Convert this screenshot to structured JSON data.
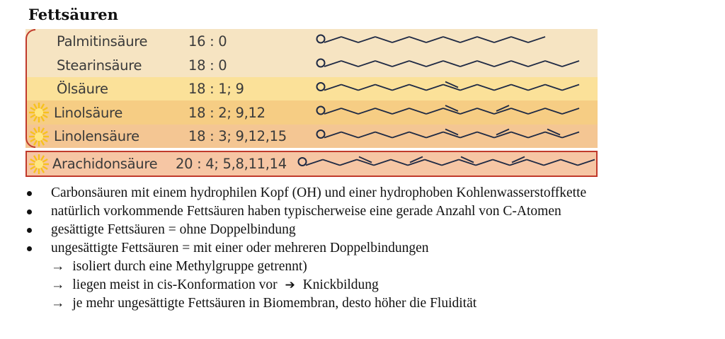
{
  "title": "Fettsäuren",
  "fatty_acids": [
    {
      "name": "Palmitinsäure",
      "notation": "16 : 0",
      "bg": "#f6e4c2",
      "sun": false
    },
    {
      "name": "Stearinsäure",
      "notation": "18 : 0",
      "bg": "#f6e4c2",
      "sun": false
    },
    {
      "name": "Ölsäure",
      "notation": "18 : 1;  9",
      "bg": "#fbe199",
      "sun": false
    },
    {
      "name": "Linolsäure",
      "notation": "18 : 2;  9,12",
      "bg": "#f6cd84",
      "sun": true
    },
    {
      "name": "Linolensäure",
      "notation": "18 : 3;  9,12,15",
      "bg": "#f4c693",
      "sun": true
    },
    {
      "name": "Arachidonsäure",
      "notation": "20 : 4;  5,8,11,14",
      "bg": "#f6c6a4",
      "sun": true
    }
  ],
  "bullets": [
    "Carbonsäuren mit einem hydrophilen Kopf (OH) und einer hydrophoben Kohlenwasserstoffkette",
    "natürlich vorkommende Fettsäuren haben typischerweise eine gerade Anzahl von C-Atomen",
    "gesättigte Fettsäuren = ohne Doppelbindung",
    "ungesättigte Fettsäuren = mit einer oder mehreren Doppelbindungen"
  ],
  "sub_points": [
    {
      "arrow": "→",
      "text": "isoliert durch eine Methylgruppe getrennt)"
    },
    {
      "arrow": "→",
      "text": "liegen meist in cis-Konformation vor",
      "arrow2": "➔",
      "text2": "Knickbildung"
    },
    {
      "arrow": "→",
      "text": "je mehr ungesättigte Fettsäuren in Biomembran, desto höher die Fluidität"
    }
  ],
  "colors": {
    "border_red": "#c0392b",
    "chain": "#1f2a44",
    "sun": "#f7c21c"
  }
}
